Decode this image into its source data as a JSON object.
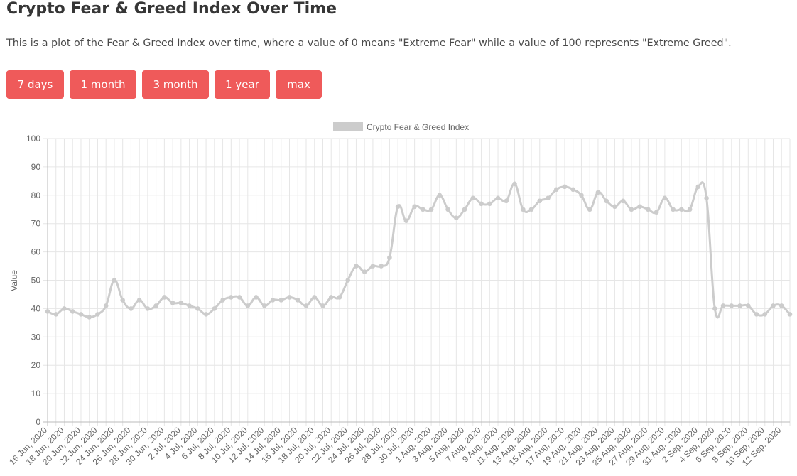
{
  "header": {
    "title": "Crypto Fear & Greed Index Over Time",
    "description": "This is a plot of the Fear & Greed Index over time, where a value of 0 means \"Extreme Fear\" while a value of 100 represents \"Extreme Greed\"."
  },
  "range_buttons": [
    {
      "label": "7 days"
    },
    {
      "label": "1 month"
    },
    {
      "label": "3 month"
    },
    {
      "label": "1 year"
    },
    {
      "label": "max"
    }
  ],
  "colors": {
    "button": "#ef5a5a",
    "series": "#cccccc",
    "grid": "#e6e6e6",
    "text": "#666666"
  },
  "chart_data": {
    "type": "line",
    "title": "",
    "xlabel": "",
    "ylabel": "Value",
    "ylim": [
      0,
      100
    ],
    "yticks": [
      0,
      10,
      20,
      30,
      40,
      50,
      60,
      70,
      80,
      90,
      100
    ],
    "grid": true,
    "legend_position": "top-center",
    "x_tick_labels": [
      "16 Jun, 2020",
      "18 Jun, 2020",
      "20 Jun, 2020",
      "22 Jun, 2020",
      "24 Jun, 2020",
      "26 Jun, 2020",
      "28 Jun, 2020",
      "30 Jun, 2020",
      "2 Jul, 2020",
      "4 Jul, 2020",
      "6 Jul, 2020",
      "8 Jul, 2020",
      "10 Jul, 2020",
      "12 Jul, 2020",
      "14 Jul, 2020",
      "16 Jul, 2020",
      "18 Jul, 2020",
      "20 Jul, 2020",
      "22 Jul, 2020",
      "24 Jul, 2020",
      "26 Jul, 2020",
      "28 Jul, 2020",
      "30 Jul, 2020",
      "1 Aug, 2020",
      "3 Aug, 2020",
      "5 Aug, 2020",
      "7 Aug, 2020",
      "9 Aug, 2020",
      "11 Aug, 2020",
      "13 Aug, 2020",
      "15 Aug, 2020",
      "17 Aug, 2020",
      "19 Aug, 2020",
      "21 Aug, 2020",
      "23 Aug, 2020",
      "25 Aug, 2020",
      "27 Aug, 2020",
      "29 Aug, 2020",
      "31 Aug, 2020",
      "2 Sep, 2020",
      "4 Sep, 2020",
      "6 Sep, 2020",
      "8 Sep, 2020",
      "10 Sep, 2020",
      "12 Sep, 2020"
    ],
    "series": [
      {
        "name": "Crypto Fear & Greed Index",
        "start_date": "16 Jun, 2020",
        "values": [
          39,
          38,
          40,
          39,
          38,
          37,
          38,
          41,
          50,
          43,
          40,
          43,
          40,
          41,
          44,
          42,
          42,
          41,
          40,
          38,
          40,
          43,
          44,
          44,
          41,
          44,
          41,
          43,
          43,
          44,
          43,
          41,
          44,
          41,
          44,
          44,
          50,
          55,
          53,
          55,
          55,
          58,
          76,
          71,
          76,
          75,
          75,
          80,
          75,
          72,
          75,
          79,
          77,
          77,
          79,
          78,
          84,
          75,
          75,
          78,
          79,
          82,
          83,
          82,
          80,
          75,
          81,
          78,
          76,
          78,
          75,
          76,
          75,
          74,
          79,
          75,
          75,
          75,
          83,
          79,
          40,
          41,
          41,
          41,
          41,
          38,
          38,
          41,
          41,
          38
        ]
      }
    ]
  }
}
